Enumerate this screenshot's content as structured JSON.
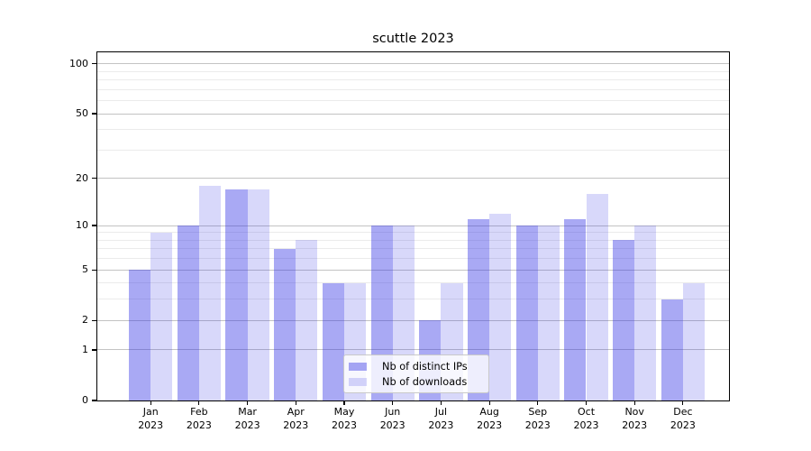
{
  "chart_data": {
    "type": "bar",
    "title": "scuttle 2023",
    "x_tick_labels": [
      [
        "Jan",
        "2023"
      ],
      [
        "Feb",
        "2023"
      ],
      [
        "Mar",
        "2023"
      ],
      [
        "Apr",
        "2023"
      ],
      [
        "May",
        "2023"
      ],
      [
        "Jun",
        "2023"
      ],
      [
        "Jul",
        "2023"
      ],
      [
        "Aug",
        "2023"
      ],
      [
        "Sep",
        "2023"
      ],
      [
        "Oct",
        "2023"
      ],
      [
        "Nov",
        "2023"
      ],
      [
        "Dec",
        "2023"
      ]
    ],
    "series": [
      {
        "name": "Nb of distinct IPs",
        "color": "rgba(50,50,228,0.42)",
        "values": [
          5,
          10,
          17,
          7,
          4,
          10,
          2,
          11,
          10,
          11,
          8,
          3
        ]
      },
      {
        "name": "Nb of downloads",
        "color": "rgba(50,50,228,0.19)",
        "values": [
          9,
          18,
          17,
          8,
          4,
          10,
          4,
          12,
          10,
          16,
          10,
          4
        ]
      }
    ],
    "xlabel": "",
    "ylabel": "",
    "yscale": "log10(value+1)",
    "ylim": [
      0,
      118
    ],
    "y_major_ticks": [
      0,
      1,
      2,
      5,
      10,
      20,
      50,
      100
    ],
    "y_minor_ticks": [
      3,
      4,
      6,
      7,
      8,
      9,
      30,
      40,
      60,
      70,
      80,
      90
    ],
    "grid": true,
    "legend_position": "lower center"
  },
  "colors": {
    "grid_major": "#c3c3c3",
    "grid_minor": "#ebebeb",
    "axis": "#000000",
    "text": "#000000",
    "legend_border": "#c9c9c9"
  }
}
